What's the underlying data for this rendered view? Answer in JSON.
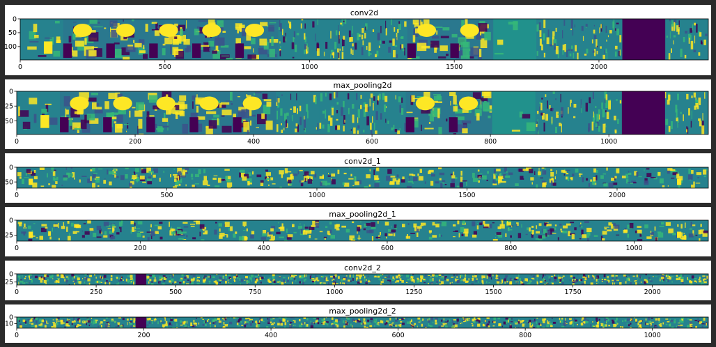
{
  "colors": {
    "low": "#440154",
    "mid": "#26828e",
    "teal": "#2a788e",
    "high": "#fde725",
    "green": "#35b779",
    "figure_background": "#2b2b2b"
  },
  "chart_data": [
    {
      "type": "heatmap",
      "title": "conv2d",
      "xticks": [
        0,
        500,
        1000,
        1500,
        2000
      ],
      "yticks": [
        0,
        50,
        100
      ],
      "xlim": [
        0,
        2378
      ],
      "ylim": [
        148,
        0
      ],
      "tile_count": 16,
      "tiles": [
        "edge-blob",
        "face",
        "face",
        "face",
        "face",
        "face",
        "edges",
        "edges",
        "edges",
        "face",
        "face",
        "dim",
        "edges",
        "edges",
        "dark",
        "edges"
      ]
    },
    {
      "type": "heatmap",
      "title": "max_pooling2d",
      "xticks": [
        0,
        200,
        400,
        600,
        800,
        1000
      ],
      "yticks": [
        0,
        25,
        50
      ],
      "xlim": [
        0,
        1168
      ],
      "ylim": [
        73,
        0
      ],
      "tile_count": 16,
      "tiles": [
        "edge-blob",
        "face",
        "face",
        "face",
        "face",
        "face",
        "edges",
        "edges",
        "edges",
        "face",
        "face",
        "dim",
        "edges",
        "edges",
        "dark",
        "edges"
      ]
    },
    {
      "type": "heatmap",
      "title": "conv2d_1",
      "xticks": [
        0,
        500,
        1000,
        1500,
        2000
      ],
      "yticks": [
        0,
        50
      ],
      "xlim": [
        0,
        2304
      ],
      "ylim": [
        71,
        0
      ],
      "tile_count": 32,
      "tiles": [
        "blob",
        "sparse",
        "sparse",
        "sparse",
        "sparse",
        "dense",
        "sparse",
        "dense",
        "sparse",
        "sparse",
        "sparse",
        "sparse",
        "sparse",
        "dense",
        "sparse",
        "sparse",
        "sparse",
        "sparse",
        "sparse",
        "sparse",
        "sparse",
        "sparse",
        "dense",
        "sparse",
        "dense",
        "sparse",
        "sparse",
        "sparse",
        "sparse",
        "sparse",
        "blob",
        "sparse"
      ]
    },
    {
      "type": "heatmap",
      "title": "max_pooling2d_1",
      "xticks": [
        0,
        200,
        400,
        600,
        800,
        1000
      ],
      "yticks": [
        0,
        25
      ],
      "xlim": [
        0,
        1120
      ],
      "ylim": [
        35,
        0
      ],
      "tile_count": 32,
      "tiles": [
        "blob",
        "sparse",
        "sparse",
        "sparse",
        "dense",
        "sparse",
        "sparse",
        "dense",
        "sparse",
        "sparse",
        "sparse",
        "sparse",
        "sparse",
        "dense",
        "sparse",
        "sparse",
        "sparse",
        "sparse",
        "sparse",
        "sparse",
        "sparse",
        "sparse",
        "dense",
        "sparse",
        "dense",
        "sparse",
        "sparse",
        "sparse",
        "sparse",
        "sparse",
        "blob",
        "sparse"
      ]
    },
    {
      "type": "heatmap",
      "title": "conv2d_2",
      "xticks": [
        0,
        250,
        500,
        750,
        1000,
        1250,
        1500,
        1750,
        2000
      ],
      "yticks": [
        0,
        25
      ],
      "xlim": [
        0,
        2176
      ],
      "ylim": [
        34,
        0
      ],
      "tile_count": 64,
      "dark_tile_index": 11
    },
    {
      "type": "heatmap",
      "title": "max_pooling2d_2",
      "xticks": [
        0,
        200,
        400,
        600,
        800,
        1000
      ],
      "yticks": [
        0,
        10
      ],
      "xlim": [
        0,
        1088
      ],
      "ylim": [
        17,
        0
      ],
      "tile_count": 64,
      "dark_tile_index": 11
    }
  ]
}
